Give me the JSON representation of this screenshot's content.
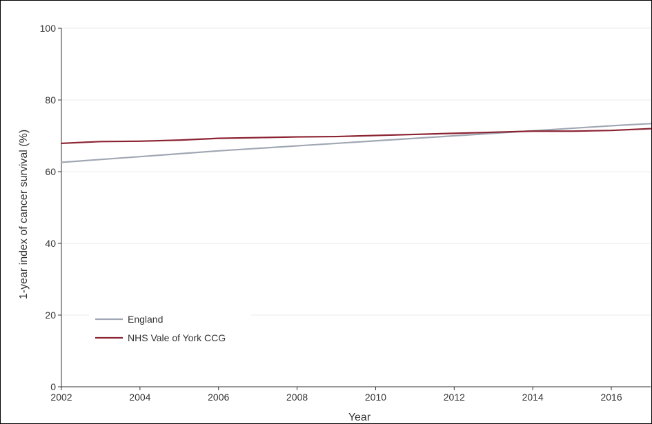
{
  "chart_data": {
    "type": "line",
    "title": "",
    "xlabel": "Year",
    "ylabel": "1-year index of cancer survival (%)",
    "xlim": [
      2002,
      2017
    ],
    "ylim": [
      0,
      100
    ],
    "x_ticks": [
      "2002",
      "2004",
      "2006",
      "2008",
      "2010",
      "2012",
      "2014",
      "2016"
    ],
    "y_ticks": [
      "0",
      "20",
      "40",
      "60",
      "80",
      "100"
    ],
    "grid": true,
    "legend_position": "bottom-left",
    "x": [
      2002,
      2003,
      2004,
      2005,
      2006,
      2007,
      2008,
      2009,
      2010,
      2011,
      2012,
      2013,
      2014,
      2015,
      2016,
      2017
    ],
    "series": [
      {
        "name": "England",
        "color": "#a0a7b4",
        "values": [
          62.6,
          63.4,
          64.2,
          65.0,
          65.8,
          66.5,
          67.2,
          67.9,
          68.6,
          69.3,
          70.0,
          70.7,
          71.4,
          72.1,
          72.8,
          73.4
        ]
      },
      {
        "name": "NHS Vale of York CCG",
        "color": "#8b2332",
        "values": [
          67.9,
          68.4,
          68.5,
          68.8,
          69.3,
          69.5,
          69.7,
          69.8,
          70.1,
          70.4,
          70.7,
          71.0,
          71.3,
          71.3,
          71.5,
          72.0
        ]
      }
    ]
  }
}
